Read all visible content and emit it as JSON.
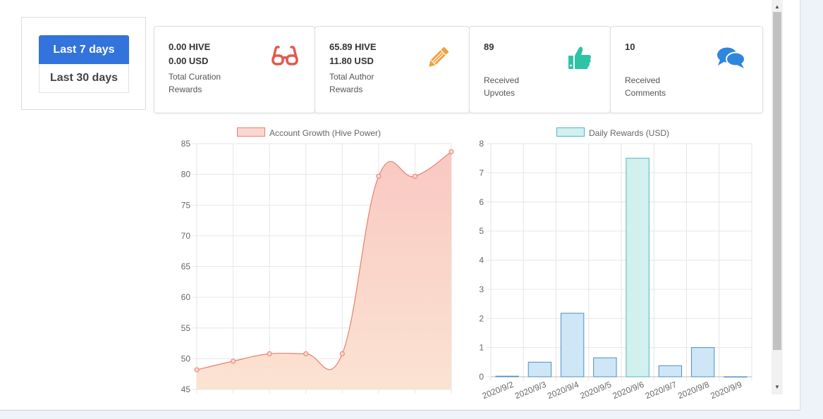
{
  "range_buttons": {
    "last7": "Last 7 days",
    "last30": "Last 30 days"
  },
  "cards": {
    "curation": {
      "value1": "0.00 HIVE",
      "value2": "0.00 USD",
      "label1": "Total Curation",
      "label2": "Rewards",
      "icon": "glasses-icon",
      "color": "#e05a4e"
    },
    "author": {
      "value1": "65.89 HIVE",
      "value2": "11.80 USD",
      "label1": "Total Author",
      "label2": "Rewards",
      "icon": "pencil-icon",
      "color": "#f0a03c"
    },
    "upvotes": {
      "value1": "89",
      "label1": "Received",
      "label2": "Upvotes",
      "icon": "thumbs-up-icon",
      "color": "#2fc2a6"
    },
    "comments": {
      "value1": "10",
      "label1": "Received",
      "label2": "Comments",
      "icon": "comments-icon",
      "color": "#2e86de"
    }
  },
  "chart_data": [
    {
      "type": "area",
      "title": "",
      "series": [
        {
          "name": "Account Growth (Hive Power)",
          "values": [
            48.2,
            49.6,
            50.8,
            50.8,
            50.8,
            79.7,
            79.7,
            83.7
          ]
        }
      ],
      "ylim": [
        45,
        85
      ],
      "yticks": [
        45,
        50,
        55,
        60,
        65,
        70,
        75,
        80,
        85
      ],
      "grid": true,
      "legend": "top-center",
      "colors": {
        "line": "#e8806a",
        "fill_top": "#f9c8c2",
        "fill_bottom": "#fbe3d2"
      }
    },
    {
      "type": "bar",
      "title": "",
      "categories": [
        "2020/9/2",
        "2020/9/3",
        "2020/9/4",
        "2020/9/5",
        "2020/9/6",
        "2020/9/7",
        "2020/9/8",
        "2020/9/9"
      ],
      "series": [
        {
          "name": "Daily Rewards (USD)",
          "values": [
            0.02,
            0.5,
            2.18,
            0.65,
            7.5,
            0.38,
            1.0,
            0
          ]
        }
      ],
      "ylim": [
        0,
        8
      ],
      "yticks": [
        0,
        1,
        2,
        3,
        4,
        5,
        6,
        7,
        8
      ],
      "grid": true,
      "legend": "top-center",
      "colors": {
        "bar_fill": "#cfe6f6",
        "bar_stroke": "#4a90c8",
        "highlight_fill": "#d2f0ee",
        "highlight_stroke": "#4cb7c4"
      }
    }
  ]
}
